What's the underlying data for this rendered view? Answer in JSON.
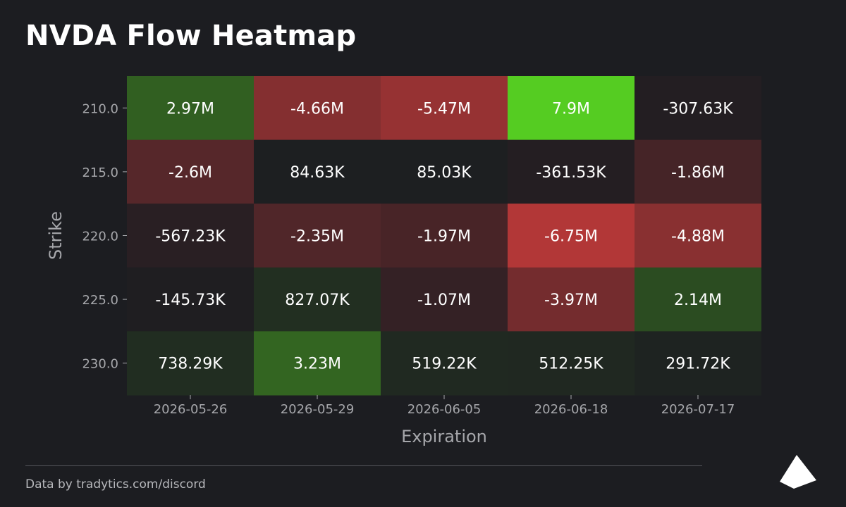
{
  "title": "NVDA Flow Heatmap",
  "footer": {
    "text": "Data by tradytics.com/discord"
  },
  "logo": {
    "name": "tradytics-logo",
    "color": "#ffffff"
  },
  "chart_data": {
    "type": "heatmap",
    "xlabel": "Expiration",
    "ylabel": "Strike",
    "x_categories": [
      "2026-05-26",
      "2026-05-29",
      "2026-06-05",
      "2026-06-18",
      "2026-07-17"
    ],
    "y_categories": [
      "210.0",
      "215.0",
      "220.0",
      "225.0",
      "230.0"
    ],
    "values": [
      [
        2970000,
        -4660000,
        -5470000,
        7900000,
        -307630
      ],
      [
        -2600000,
        84630,
        85030,
        -361530,
        -1860000
      ],
      [
        -567230,
        -2350000,
        -1970000,
        -6750000,
        -4880000
      ],
      [
        -145730,
        827070,
        -1070000,
        -3970000,
        2140000
      ],
      [
        738290,
        3230000,
        519220,
        512250,
        291720
      ]
    ],
    "cell_labels": [
      [
        "2.97M",
        "-4.66M",
        "-5.47M",
        "7.9M",
        "-307.63K"
      ],
      [
        "-2.6M",
        "84.63K",
        "85.03K",
        "-361.53K",
        "-1.86M"
      ],
      [
        "-567.23K",
        "-2.35M",
        "-1.97M",
        "-6.75M",
        "-4.88M"
      ],
      [
        "-145.73K",
        "827.07K",
        "-1.07M",
        "-3.97M",
        "2.14M"
      ],
      [
        "738.29K",
        "3.23M",
        "519.22K",
        "512.25K",
        "291.72K"
      ]
    ],
    "colors": {
      "positive_max": "#55cc22",
      "negative_max": "#cc3b3b",
      "neutral": "#1c1d21",
      "text": "#ffffff",
      "tick_text": "#a6a7ab",
      "axis_label": "#a6a7ab"
    }
  }
}
